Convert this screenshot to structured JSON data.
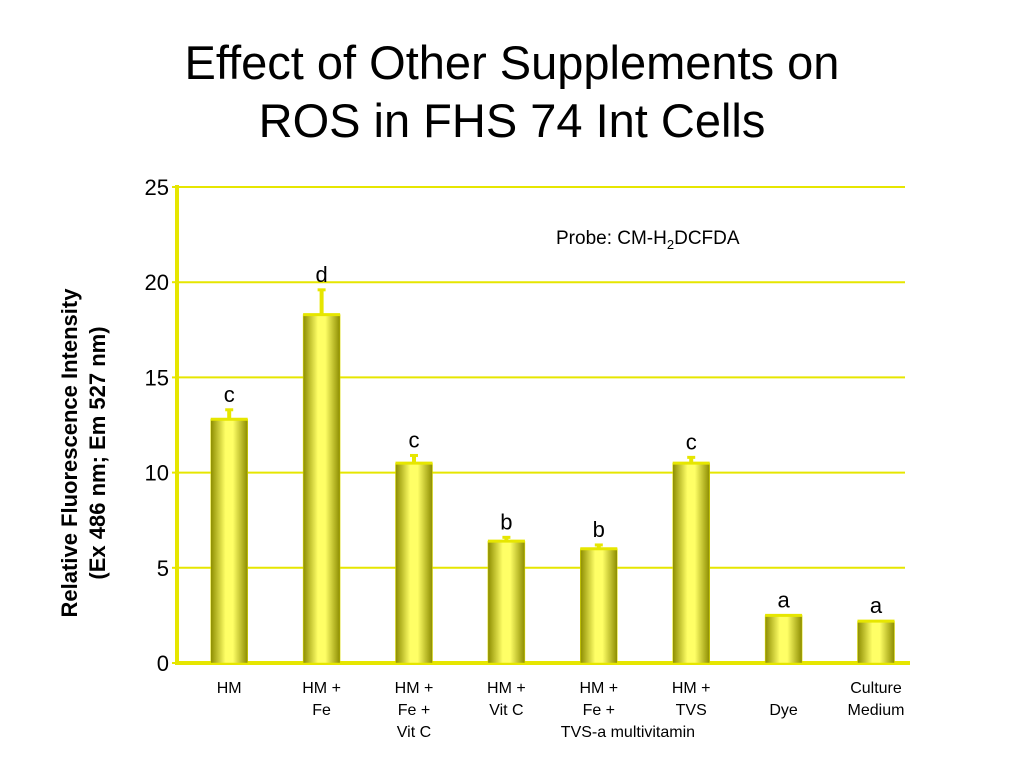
{
  "title_line1": "Effect of Other Supplements on",
  "title_line2": "ROS in FHS 74 Int Cells",
  "probe_label": {
    "prefix": "Probe: CM-H",
    "subscript": "2",
    "suffix": "DCFDA"
  },
  "colors": {
    "bar_main": "#e6e600",
    "bar_light": "#ffff66",
    "bar_dark": "#8c8c00",
    "axis": "#e6e600",
    "grid": "#e6e600",
    "error": "#e6e600"
  },
  "chart_data": {
    "type": "bar",
    "title": "Effect of Other Supplements on ROS in FHS 74 Int Cells",
    "ylabel": "Relative Fluorescence Intensity (Ex 486 nm; Em 527 nm)",
    "ylabel_line1": "Relative Fluorescence Intensity",
    "ylabel_line2": "(Ex 486 nm; Em 527 nm)",
    "xlabel": "",
    "ylim": [
      0,
      25
    ],
    "yticks": [
      0,
      5,
      10,
      15,
      20,
      25
    ],
    "grid": true,
    "categories": [
      {
        "lines": [
          "HM"
        ]
      },
      {
        "lines": [
          "HM +",
          "Fe"
        ]
      },
      {
        "lines": [
          "HM +",
          "Fe +",
          "Vit C"
        ]
      },
      {
        "lines": [
          "HM +",
          "Vit C"
        ]
      },
      {
        "lines": [
          "HM +",
          "Fe +",
          "TVS-a multivitamin"
        ]
      },
      {
        "lines": [
          "HM +",
          "TVS"
        ]
      },
      {
        "lines": [
          "",
          "Dye"
        ]
      },
      {
        "lines": [
          "Culture",
          "Medium"
        ]
      }
    ],
    "values": [
      12.8,
      18.3,
      10.5,
      6.4,
      6.0,
      10.5,
      2.5,
      2.2
    ],
    "errors": [
      0.5,
      1.3,
      0.4,
      0.2,
      0.2,
      0.3,
      0,
      0
    ],
    "letters": [
      "c",
      "d",
      "c",
      "b",
      "b",
      "c",
      "a",
      "a"
    ]
  }
}
